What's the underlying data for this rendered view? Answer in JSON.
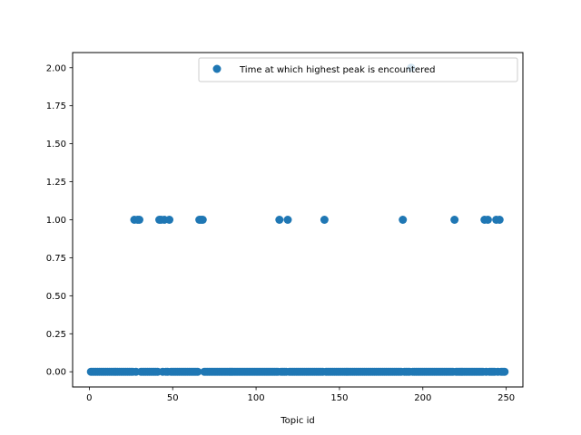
{
  "chart_data": {
    "type": "scatter",
    "title": "",
    "xlabel": "Topic id",
    "ylabel": "",
    "xlim": [
      -10,
      260
    ],
    "ylim": [
      -0.1,
      2.1
    ],
    "xticks": [
      0,
      50,
      100,
      150,
      200,
      250
    ],
    "xtick_labels": [
      "0",
      "50",
      "100",
      "150",
      "200",
      "250"
    ],
    "yticks": [
      0.0,
      0.25,
      0.5,
      0.75,
      1.0,
      1.25,
      1.5,
      1.75,
      2.0
    ],
    "ytick_labels": [
      "0.00",
      "0.25",
      "0.50",
      "0.75",
      "1.00",
      "1.25",
      "1.50",
      "1.75",
      "2.00"
    ],
    "grid": false,
    "legend_position": "top-right",
    "series": [
      {
        "name": "Time at which highest peak is encountered",
        "color": "#1f77b4",
        "x_range_with_value_zero": [
          1,
          249
        ],
        "points_value_one": [
          27,
          29,
          30,
          42,
          43,
          45,
          48,
          66,
          67,
          68,
          114,
          119,
          141,
          188,
          219,
          237,
          239,
          244,
          246
        ],
        "points_value_two": [
          193
        ]
      }
    ]
  }
}
